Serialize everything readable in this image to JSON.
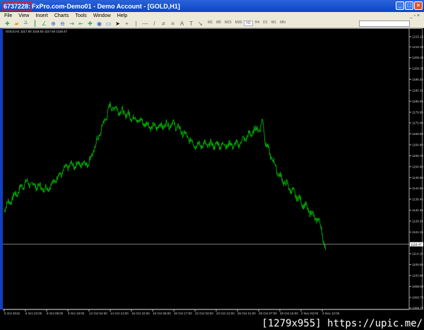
{
  "window": {
    "account": "6737228:",
    "title": " FxPro.com-Demo01 - Demo Account - [GOLD,H1]"
  },
  "menu": [
    "File",
    "View",
    "Insert",
    "Charts",
    "Tools",
    "Window",
    "Help"
  ],
  "timeframes": [
    "M1",
    "M5",
    "M15",
    "M30",
    "H1",
    "H4",
    "D1",
    "W1",
    "MN"
  ],
  "selected_timeframe": "H1",
  "chart_info": "GOLD,H1  1117.93 1118.53 1117.64 1118.47",
  "footer": "[1279x955] https://upic.me/",
  "colors": {
    "candles": "#00a000",
    "background": "#000000",
    "price_line": "#c0c0c0"
  },
  "chart_data": {
    "type": "line",
    "symbol": "GOLD",
    "timeframe": "H1",
    "y_ticks": [
      1215.1,
      1210.4,
      1205.4,
      1200.35,
      1195.25,
      1190.15,
      1185.05,
      1179.95,
      1175.0,
      1169.9,
      1164.8,
      1159.7,
      1154.6,
      1149.5,
      1144.55,
      1139.45,
      1134.35,
      1129.25,
      1124.15,
      1114.1,
      1109.0,
      1103.9,
      1098.8,
      1093.7,
      1088.75
    ],
    "ylim": [
      1088.75,
      1215.1
    ],
    "current_price": "1118.47",
    "x_ticks": [
      "5 Oct 2015",
      "6 Oct 23:00",
      "8 Oct 09:00",
      "9 Oct 18:00",
      "12 Oct 04:00",
      "14 Oct 13:00",
      "15 Oct 22:00",
      "19 Oct 08:00",
      "20 Oct 17:00",
      "22 Oct 03:00",
      "23 Oct 12:00",
      "26 Oct 21:00",
      "28 Oct 07:00",
      "29 Oct 16:00",
      "2 Nov 03:00",
      "3 Nov 12:00"
    ],
    "price_at_ticks": [
      1135.2,
      1147.3,
      1144.0,
      1154.9,
      1156.5,
      1182.9,
      1177.9,
      1173.0,
      1174.6,
      1164.8,
      1164.8,
      1164.8,
      1173.0,
      1150.0,
      1138.4,
      1127.0
    ],
    "last_price": 1118.47
  }
}
